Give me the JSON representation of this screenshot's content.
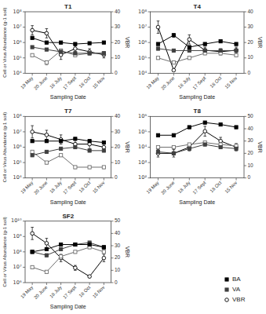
{
  "chart_data": [
    {
      "type": "line",
      "title": "T1",
      "xlabel": "Sampling Date",
      "ylabel": "Cell or Virus Abundance (g-1 soil)",
      "y2label": "VBR",
      "categories": [
        "19 May",
        "20 June",
        "18 July",
        "17 Sept",
        "18 Oct",
        "15 Nov"
      ],
      "log": "y",
      "ylim": [
        10000.0,
        100000000.0
      ],
      "yticks": [
        {
          "value": 10000.0,
          "label": "10⁴"
        },
        {
          "value": 100000.0,
          "label": "10⁵"
        },
        {
          "value": 1000000.0,
          "label": "10⁶"
        },
        {
          "value": 10000000.0,
          "label": "10⁷"
        },
        {
          "value": 100000000.0,
          "label": "10⁸"
        }
      ],
      "y2lim": [
        0,
        40
      ],
      "y2ticks": [
        0,
        10,
        20,
        30,
        40
      ],
      "series": [
        {
          "color": "#000000",
          "marker": "square",
          "values": [
            2000000.0,
            1000000.0,
            1000000.0,
            800000.0,
            900000.0,
            1000000.0
          ],
          "errors": [
            300000.0,
            200000.0,
            200000.0,
            150000.0,
            150000.0,
            150000.0
          ]
        },
        {
          "color": "#404040",
          "marker": "square",
          "values": [
            500000.0,
            350000.0,
            250000.0,
            200000.0,
            200000.0,
            200000.0
          ],
          "errors": [
            80000.0,
            60000.0,
            50000.0,
            40000.0,
            40000.0,
            40000.0
          ]
        },
        {
          "color": "#707070",
          "marker": "open-square",
          "values": [
            150000.0,
            50000.0,
            300000.0,
            150000.0,
            200000.0,
            200000.0
          ],
          "errors": [
            30000.0,
            15000.0,
            80000.0,
            30000.0,
            40000.0,
            40000.0
          ]
        },
        {
          "color": "#000000",
          "marker": "open-circle",
          "axis": "y2",
          "values": [
            28,
            26,
            12,
            16,
            14,
            12
          ],
          "errors": [
            3,
            3,
            3,
            2,
            2,
            2
          ]
        }
      ]
    },
    {
      "type": "line",
      "title": "T4",
      "xlabel": "Sampling Date",
      "y2label": "VBR",
      "categories": [
        "19 May",
        "20 June",
        "18 July",
        "17 Sept",
        "18 Oct",
        "15 Nov"
      ],
      "log": "y",
      "ylim": [
        10000.0,
        100000000.0
      ],
      "yticks": [
        {
          "value": 10000.0,
          "label": "10⁴"
        },
        {
          "value": 100000.0,
          "label": "10⁵"
        },
        {
          "value": 1000000.0,
          "label": "10⁶"
        },
        {
          "value": 10000000.0,
          "label": "10⁷"
        },
        {
          "value": 100000000.0,
          "label": "10⁸"
        }
      ],
      "y2lim": [
        0,
        40
      ],
      "y2ticks": [
        0,
        10,
        20,
        30,
        40
      ],
      "series": [
        {
          "color": "#000000",
          "marker": "square",
          "values": [
            800000.0,
            3000000.0,
            500000.0,
            800000.0,
            1200000.0,
            800000.0
          ],
          "errors": [
            150000.0,
            800000.0,
            100000.0,
            150000.0,
            200000.0,
            150000.0
          ]
        },
        {
          "color": "#404040",
          "marker": "square",
          "values": [
            400000.0,
            300000.0,
            300000.0,
            300000.0,
            300000.0,
            300000.0
          ],
          "errors": [
            80000.0,
            60000.0,
            60000.0,
            60000.0,
            60000.0,
            60000.0
          ]
        },
        {
          "color": "#707070",
          "marker": "open-square",
          "values": [
            100000.0,
            50000.0,
            100000.0,
            200000.0,
            200000.0,
            150000.0
          ],
          "errors": [
            20000.0,
            10000.0,
            20000.0,
            40000.0,
            40000.0,
            30000.0
          ]
        },
        {
          "color": "#000000",
          "marker": "open-circle",
          "axis": "y2",
          "values": [
            30,
            2,
            22,
            15,
            14,
            15
          ],
          "errors": [
            4,
            0.5,
            3,
            2,
            2,
            2
          ]
        }
      ]
    },
    {
      "type": "line",
      "title": "T7",
      "xlabel": "Sampling Date",
      "ylabel": "Cell or Virus Abundance (g-1 soil)",
      "y2label": "VBR",
      "categories": [
        "19 May",
        "20 June",
        "18 July",
        "17 Sept",
        "18 Oct",
        "15 Nov"
      ],
      "log": "y",
      "ylim": [
        10000.0,
        100000000.0
      ],
      "yticks": [
        {
          "value": 10000.0,
          "label": "10⁴"
        },
        {
          "value": 100000.0,
          "label": "10⁵"
        },
        {
          "value": 1000000.0,
          "label": "10⁶"
        },
        {
          "value": 10000000.0,
          "label": "10⁷"
        },
        {
          "value": 100000000.0,
          "label": "10⁸"
        }
      ],
      "y2lim": [
        0,
        40
      ],
      "y2ticks": [
        0,
        10,
        20,
        30,
        40
      ],
      "series": [
        {
          "color": "#000000",
          "marker": "square",
          "values": [
            2500000.0,
            2500000.0,
            2500000.0,
            3500000.0,
            2500000.0,
            2000000.0
          ],
          "errors": [
            400000.0,
            400000.0,
            400000.0,
            600000.0,
            400000.0,
            300000.0
          ]
        },
        {
          "color": "#404040",
          "marker": "square",
          "values": [
            300000.0,
            500000.0,
            800000.0,
            1000000.0,
            600000.0,
            600000.0
          ],
          "errors": [
            60000.0,
            100000.0,
            150000.0,
            200000.0,
            120000.0,
            120000.0
          ]
        },
        {
          "color": "#707070",
          "marker": "open-square",
          "values": [
            500000.0,
            100000.0,
            300000.0,
            50000.0,
            50000.0,
            50000.0
          ],
          "errors": [
            100000.0,
            20000.0,
            60000.0,
            10000.0,
            10000.0,
            10000.0
          ]
        },
        {
          "color": "#000000",
          "marker": "open-circle",
          "axis": "y2",
          "values": [
            30,
            28,
            25,
            22,
            22,
            20
          ],
          "errors": [
            4,
            3,
            3,
            3,
            3,
            3
          ]
        }
      ]
    },
    {
      "type": "line",
      "title": "T8",
      "xlabel": "Sampling Date",
      "y2label": "VBR",
      "categories": [
        "19 May",
        "20 June",
        "18 July",
        "17 Sept",
        "18 Oct",
        "15 Nov"
      ],
      "log": "y",
      "ylim": [
        100.0,
        1000000.0
      ],
      "yticks": [
        {
          "value": 100.0,
          "label": "10²"
        },
        {
          "value": 1000.0,
          "label": "10³"
        },
        {
          "value": 10000.0,
          "label": "10⁴"
        },
        {
          "value": 100000.0,
          "label": "10⁵"
        },
        {
          "value": 1000000.0,
          "label": "10⁶"
        }
      ],
      "y2lim": [
        0,
        50
      ],
      "y2ticks": [
        0,
        10,
        20,
        30,
        40,
        50
      ],
      "series": [
        {
          "color": "#000000",
          "marker": "square",
          "values": [
            60000.0,
            60000.0,
            200000.0,
            400000.0,
            300000.0,
            200000.0
          ],
          "errors": [
            12000.0,
            12000.0,
            40000.0,
            80000.0,
            60000.0,
            40000.0
          ]
        },
        {
          "color": "#404040",
          "marker": "square",
          "values": [
            5000.0,
            4000.0,
            8000.0,
            15000.0,
            10000.0,
            8000.0
          ],
          "errors": [
            1000.0,
            800.0,
            1500.0,
            3000.0,
            2000.0,
            1500.0
          ]
        },
        {
          "color": "#707070",
          "marker": "open-square",
          "values": [
            10000.0,
            10000.0,
            15000.0,
            20000.0,
            15000.0,
            12000.0
          ],
          "errors": [
            2000.0,
            2000.0,
            3000.0,
            4000.0,
            3000.0,
            2500.0
          ]
        },
        {
          "color": "#000000",
          "marker": "open-circle",
          "axis": "y2",
          "values": [
            20,
            20,
            25,
            38,
            30,
            25
          ],
          "errors": [
            3,
            3,
            3,
            4,
            3,
            3
          ]
        }
      ]
    },
    {
      "type": "line",
      "title": "SF2",
      "xlabel": "Sampling Date",
      "ylabel": "Cell or Virus Abundance (g-1 soil)",
      "y2label": "VBR",
      "categories": [
        "19 May",
        "20 June",
        "18 July",
        "17 Sept",
        "18 Oct",
        "15 Nov"
      ],
      "log": "y",
      "legend": "lower right",
      "ylim": [
        1000000.0,
        10000000000.0
      ],
      "yticks": [
        {
          "value": 1000000.0,
          "label": "10⁶"
        },
        {
          "value": 10000000.0,
          "label": "10⁷"
        },
        {
          "value": 100000000.0,
          "label": "10⁸"
        },
        {
          "value": 1000000000.0,
          "label": "10⁹"
        },
        {
          "value": 10000000000.0,
          "label": "10¹⁰"
        }
      ],
      "y2lim": [
        0,
        50
      ],
      "y2ticks": [
        0,
        10,
        20,
        30,
        40,
        50
      ],
      "series": [
        {
          "name": "BA",
          "color": "#000000",
          "marker": "square",
          "values": [
            100000000.0,
            150000000.0,
            300000000.0,
            300000000.0,
            300000000.0,
            200000000.0
          ],
          "errors": [
            20000000.0,
            30000000.0,
            60000000.0,
            60000000.0,
            60000000.0,
            40000000.0
          ]
        },
        {
          "name": "VA",
          "color": "#404040",
          "marker": "square",
          "values": [
            100000000.0,
            60000000.0,
            150000000.0,
            300000000.0,
            400000000.0,
            200000000.0
          ],
          "errors": [
            20000000.0,
            12000000.0,
            30000000.0,
            60000000.0,
            80000000.0,
            40000000.0
          ]
        },
        {
          "color": "#707070",
          "marker": "open-square",
          "values": [
            10000000.0,
            5000000.0,
            50000000.0,
            100000000.0,
            200000000.0,
            100000000.0
          ],
          "errors": [
            2000000.0,
            1000000.0,
            10000000.0,
            20000000.0,
            40000000.0,
            20000000.0
          ]
        },
        {
          "name": "VBR",
          "color": "#000000",
          "marker": "open-circle",
          "axis": "y2",
          "values": [
            40,
            32,
            20,
            12,
            5,
            20
          ],
          "errors": [
            5,
            4,
            3,
            2,
            1,
            3
          ]
        }
      ]
    }
  ]
}
